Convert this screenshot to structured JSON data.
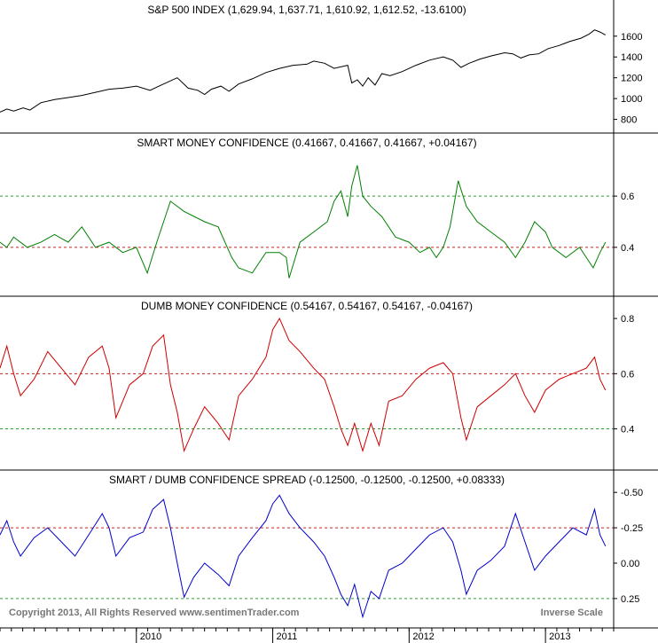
{
  "chart_data": [
    {
      "type": "line",
      "title": "S&P 500 INDEX (1,629.94, 1,637.71, 1,610.92, 1,612.52, -13.6100)",
      "ylim": [
        720,
        1760
      ],
      "yticks": [
        800,
        1000,
        1200,
        1400,
        1600
      ],
      "color": "#000000",
      "points": [
        [
          2009.0,
          870
        ],
        [
          2009.05,
          900
        ],
        [
          2009.1,
          880
        ],
        [
          2009.17,
          910
        ],
        [
          2009.22,
          890
        ],
        [
          2009.3,
          960
        ],
        [
          2009.4,
          990
        ],
        [
          2009.5,
          1010
        ],
        [
          2009.6,
          1030
        ],
        [
          2009.7,
          1060
        ],
        [
          2009.8,
          1090
        ],
        [
          2009.9,
          1100
        ],
        [
          2010.0,
          1120
        ],
        [
          2010.1,
          1080
        ],
        [
          2010.2,
          1140
        ],
        [
          2010.3,
          1200
        ],
        [
          2010.38,
          1100
        ],
        [
          2010.45,
          1080
        ],
        [
          2010.5,
          1040
        ],
        [
          2010.55,
          1090
        ],
        [
          2010.62,
          1120
        ],
        [
          2010.68,
          1070
        ],
        [
          2010.75,
          1140
        ],
        [
          2010.85,
          1190
        ],
        [
          2010.95,
          1250
        ],
        [
          2011.05,
          1290
        ],
        [
          2011.15,
          1320
        ],
        [
          2011.25,
          1330
        ],
        [
          2011.3,
          1360
        ],
        [
          2011.38,
          1340
        ],
        [
          2011.45,
          1290
        ],
        [
          2011.55,
          1320
        ],
        [
          2011.58,
          1150
        ],
        [
          2011.62,
          1180
        ],
        [
          2011.66,
          1120
        ],
        [
          2011.7,
          1200
        ],
        [
          2011.75,
          1130
        ],
        [
          2011.8,
          1240
        ],
        [
          2011.86,
          1220
        ],
        [
          2011.95,
          1260
        ],
        [
          2012.05,
          1320
        ],
        [
          2012.15,
          1370
        ],
        [
          2012.25,
          1400
        ],
        [
          2012.32,
          1370
        ],
        [
          2012.38,
          1300
        ],
        [
          2012.44,
          1340
        ],
        [
          2012.52,
          1380
        ],
        [
          2012.6,
          1410
        ],
        [
          2012.7,
          1440
        ],
        [
          2012.76,
          1430
        ],
        [
          2012.82,
          1390
        ],
        [
          2012.88,
          1420
        ],
        [
          2012.95,
          1430
        ],
        [
          2013.02,
          1480
        ],
        [
          2013.1,
          1510
        ],
        [
          2013.18,
          1550
        ],
        [
          2013.26,
          1580
        ],
        [
          2013.32,
          1620
        ],
        [
          2013.36,
          1660
        ],
        [
          2013.4,
          1640
        ],
        [
          2013.44,
          1612
        ]
      ]
    },
    {
      "type": "line",
      "title": "SMART MONEY CONFIDENCE (0.41667, 0.41667, 0.41667, +0.04167)",
      "ylim": [
        0.23,
        0.77
      ],
      "yticks": [
        0.4,
        0.6
      ],
      "reference_lines": [
        {
          "value": 0.6,
          "color": "#2e9e2e"
        },
        {
          "value": 0.4,
          "color": "#cc2222"
        }
      ],
      "color": "#008000",
      "points": [
        [
          2009.0,
          0.42
        ],
        [
          2009.05,
          0.4
        ],
        [
          2009.1,
          0.44
        ],
        [
          2009.2,
          0.4
        ],
        [
          2009.3,
          0.42
        ],
        [
          2009.4,
          0.45
        ],
        [
          2009.5,
          0.42
        ],
        [
          2009.6,
          0.48
        ],
        [
          2009.7,
          0.4
        ],
        [
          2009.8,
          0.42
        ],
        [
          2009.9,
          0.38
        ],
        [
          2010.0,
          0.4
        ],
        [
          2010.08,
          0.3
        ],
        [
          2010.15,
          0.42
        ],
        [
          2010.25,
          0.58
        ],
        [
          2010.35,
          0.54
        ],
        [
          2010.5,
          0.5
        ],
        [
          2010.6,
          0.48
        ],
        [
          2010.7,
          0.36
        ],
        [
          2010.75,
          0.32
        ],
        [
          2010.85,
          0.3
        ],
        [
          2010.95,
          0.38
        ],
        [
          2011.05,
          0.38
        ],
        [
          2011.1,
          0.36
        ],
        [
          2011.12,
          0.28
        ],
        [
          2011.2,
          0.42
        ],
        [
          2011.3,
          0.46
        ],
        [
          2011.4,
          0.5
        ],
        [
          2011.45,
          0.58
        ],
        [
          2011.5,
          0.62
        ],
        [
          2011.55,
          0.52
        ],
        [
          2011.58,
          0.64
        ],
        [
          2011.62,
          0.72
        ],
        [
          2011.66,
          0.6
        ],
        [
          2011.72,
          0.56
        ],
        [
          2011.8,
          0.52
        ],
        [
          2011.9,
          0.44
        ],
        [
          2012.0,
          0.42
        ],
        [
          2012.08,
          0.38
        ],
        [
          2012.15,
          0.4
        ],
        [
          2012.2,
          0.36
        ],
        [
          2012.25,
          0.4
        ],
        [
          2012.3,
          0.48
        ],
        [
          2012.36,
          0.66
        ],
        [
          2012.42,
          0.56
        ],
        [
          2012.5,
          0.5
        ],
        [
          2012.6,
          0.46
        ],
        [
          2012.7,
          0.42
        ],
        [
          2012.78,
          0.36
        ],
        [
          2012.85,
          0.42
        ],
        [
          2012.92,
          0.5
        ],
        [
          2013.0,
          0.46
        ],
        [
          2013.05,
          0.4
        ],
        [
          2013.15,
          0.36
        ],
        [
          2013.25,
          0.4
        ],
        [
          2013.35,
          0.32
        ],
        [
          2013.4,
          0.38
        ],
        [
          2013.44,
          0.42
        ]
      ]
    },
    {
      "type": "line",
      "title": "DUMB MONEY CONFIDENCE (0.54167, 0.54167, 0.54167, -0.04167)",
      "ylim": [
        0.27,
        0.81
      ],
      "yticks": [
        0.4,
        0.6,
        0.8
      ],
      "reference_lines": [
        {
          "value": 0.6,
          "color": "#cc2222"
        },
        {
          "value": 0.4,
          "color": "#2e9e2e"
        }
      ],
      "color": "#cc0000",
      "points": [
        [
          2009.0,
          0.62
        ],
        [
          2009.05,
          0.7
        ],
        [
          2009.1,
          0.6
        ],
        [
          2009.15,
          0.52
        ],
        [
          2009.25,
          0.58
        ],
        [
          2009.35,
          0.68
        ],
        [
          2009.45,
          0.62
        ],
        [
          2009.55,
          0.56
        ],
        [
          2009.65,
          0.66
        ],
        [
          2009.75,
          0.7
        ],
        [
          2009.8,
          0.62
        ],
        [
          2009.85,
          0.44
        ],
        [
          2009.95,
          0.56
        ],
        [
          2010.05,
          0.6
        ],
        [
          2010.12,
          0.7
        ],
        [
          2010.2,
          0.74
        ],
        [
          2010.25,
          0.56
        ],
        [
          2010.3,
          0.46
        ],
        [
          2010.35,
          0.32
        ],
        [
          2010.42,
          0.4
        ],
        [
          2010.5,
          0.48
        ],
        [
          2010.6,
          0.42
        ],
        [
          2010.68,
          0.36
        ],
        [
          2010.75,
          0.52
        ],
        [
          2010.85,
          0.58
        ],
        [
          2010.95,
          0.66
        ],
        [
          2011.0,
          0.76
        ],
        [
          2011.05,
          0.8
        ],
        [
          2011.12,
          0.72
        ],
        [
          2011.2,
          0.68
        ],
        [
          2011.3,
          0.62
        ],
        [
          2011.38,
          0.58
        ],
        [
          2011.45,
          0.48
        ],
        [
          2011.5,
          0.4
        ],
        [
          2011.55,
          0.34
        ],
        [
          2011.6,
          0.42
        ],
        [
          2011.66,
          0.32
        ],
        [
          2011.72,
          0.42
        ],
        [
          2011.78,
          0.34
        ],
        [
          2011.85,
          0.5
        ],
        [
          2011.95,
          0.52
        ],
        [
          2012.05,
          0.58
        ],
        [
          2012.15,
          0.62
        ],
        [
          2012.25,
          0.64
        ],
        [
          2012.32,
          0.6
        ],
        [
          2012.38,
          0.44
        ],
        [
          2012.42,
          0.36
        ],
        [
          2012.5,
          0.48
        ],
        [
          2012.6,
          0.52
        ],
        [
          2012.7,
          0.56
        ],
        [
          2012.78,
          0.6
        ],
        [
          2012.85,
          0.52
        ],
        [
          2012.92,
          0.46
        ],
        [
          2013.0,
          0.54
        ],
        [
          2013.1,
          0.58
        ],
        [
          2013.2,
          0.6
        ],
        [
          2013.3,
          0.62
        ],
        [
          2013.36,
          0.66
        ],
        [
          2013.4,
          0.58
        ],
        [
          2013.44,
          0.54
        ]
      ]
    },
    {
      "type": "line",
      "title": "SMART / DUMB CONFIDENCE SPREAD (-0.12500, -0.12500, -0.12500, +0.08333)",
      "ylim": [
        -0.52,
        0.42
      ],
      "inverted": true,
      "yticks": [
        -0.5,
        -0.25,
        0.0,
        0.25
      ],
      "ytick_labels": [
        "-0.50",
        "-0.25",
        "0.00",
        "0.25"
      ],
      "reference_lines": [
        {
          "value": -0.25,
          "color": "#cc2222"
        },
        {
          "value": 0.25,
          "color": "#2e9e2e"
        }
      ],
      "color": "#0000cc",
      "points": [
        [
          2009.0,
          -0.2
        ],
        [
          2009.05,
          -0.3
        ],
        [
          2009.1,
          -0.15
        ],
        [
          2009.15,
          -0.05
        ],
        [
          2009.25,
          -0.18
        ],
        [
          2009.35,
          -0.25
        ],
        [
          2009.45,
          -0.15
        ],
        [
          2009.55,
          -0.05
        ],
        [
          2009.65,
          -0.2
        ],
        [
          2009.75,
          -0.35
        ],
        [
          2009.8,
          -0.25
        ],
        [
          2009.85,
          -0.05
        ],
        [
          2009.95,
          -0.18
        ],
        [
          2010.05,
          -0.22
        ],
        [
          2010.12,
          -0.38
        ],
        [
          2010.2,
          -0.45
        ],
        [
          2010.25,
          -0.25
        ],
        [
          2010.3,
          0.0
        ],
        [
          2010.35,
          0.24
        ],
        [
          2010.42,
          0.1
        ],
        [
          2010.5,
          0.0
        ],
        [
          2010.6,
          0.08
        ],
        [
          2010.68,
          0.16
        ],
        [
          2010.75,
          -0.05
        ],
        [
          2010.85,
          -0.18
        ],
        [
          2010.95,
          -0.3
        ],
        [
          2011.0,
          -0.42
        ],
        [
          2011.05,
          -0.48
        ],
        [
          2011.12,
          -0.35
        ],
        [
          2011.2,
          -0.25
        ],
        [
          2011.3,
          -0.15
        ],
        [
          2011.38,
          -0.05
        ],
        [
          2011.45,
          0.1
        ],
        [
          2011.5,
          0.22
        ],
        [
          2011.55,
          0.3
        ],
        [
          2011.6,
          0.15
        ],
        [
          2011.66,
          0.38
        ],
        [
          2011.72,
          0.2
        ],
        [
          2011.78,
          0.25
        ],
        [
          2011.85,
          0.05
        ],
        [
          2011.95,
          0.0
        ],
        [
          2012.05,
          -0.1
        ],
        [
          2012.15,
          -0.2
        ],
        [
          2012.25,
          -0.25
        ],
        [
          2012.32,
          -0.15
        ],
        [
          2012.38,
          0.05
        ],
        [
          2012.42,
          0.22
        ],
        [
          2012.5,
          0.05
        ],
        [
          2012.6,
          -0.02
        ],
        [
          2012.7,
          -0.12
        ],
        [
          2012.78,
          -0.35
        ],
        [
          2012.85,
          -0.15
        ],
        [
          2012.92,
          0.05
        ],
        [
          2013.0,
          -0.05
        ],
        [
          2013.1,
          -0.15
        ],
        [
          2013.2,
          -0.25
        ],
        [
          2013.3,
          -0.2
        ],
        [
          2013.36,
          -0.38
        ],
        [
          2013.4,
          -0.2
        ],
        [
          2013.44,
          -0.12
        ]
      ]
    }
  ],
  "x_axis": {
    "range": [
      2009.0,
      2013.5
    ],
    "ticks": [
      {
        "value": 2010.0,
        "label": "2010"
      },
      {
        "value": 2011.0,
        "label": "2011"
      },
      {
        "value": 2012.0,
        "label": "2012"
      },
      {
        "value": 2013.0,
        "label": "2013"
      }
    ]
  },
  "footer": {
    "copyright": "Copyright 2013, All Rights Reserved  www.sentimenTrader.com",
    "note": "Inverse Scale"
  }
}
